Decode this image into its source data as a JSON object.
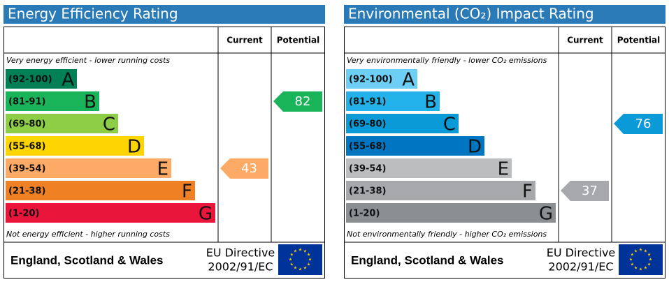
{
  "panels": [
    {
      "title": "Energy Efficiency Rating",
      "headers": [
        "Current",
        "Potential"
      ],
      "top_note": "Very energy efficient - lower running costs",
      "bottom_note": "Not energy efficient - higher running costs",
      "bands": [
        {
          "range": "(92-100)",
          "letter": "A",
          "color": "#008054"
        },
        {
          "range": "(81-91)",
          "letter": "B",
          "color": "#19b459"
        },
        {
          "range": "(69-80)",
          "letter": "C",
          "color": "#8dce46"
        },
        {
          "range": "(55-68)",
          "letter": "D",
          "color": "#ffd500"
        },
        {
          "range": "(39-54)",
          "letter": "E",
          "color": "#fcaa65"
        },
        {
          "range": "(21-38)",
          "letter": "F",
          "color": "#ef8023"
        },
        {
          "range": "(1-20)",
          "letter": "G",
          "color": "#e9153b"
        }
      ],
      "current": 43,
      "potential": 82,
      "footer": {
        "region": "England, Scotland & Wales",
        "directive": [
          "EU Directive",
          "2002/91/EC"
        ]
      }
    },
    {
      "title": "Environmental (CO₂) Impact Rating",
      "headers": [
        "Current",
        "Potential"
      ],
      "top_note": "Very environmentally friendly - lower CO₂ emissions",
      "bottom_note": "Not environmentally friendly - higher CO₂ emissions",
      "bands": [
        {
          "range": "(92-100)",
          "letter": "A",
          "color": "#6dcff6"
        },
        {
          "range": "(81-91)",
          "letter": "B",
          "color": "#22b1e8"
        },
        {
          "range": "(69-80)",
          "letter": "C",
          "color": "#0a9ad8"
        },
        {
          "range": "(55-68)",
          "letter": "D",
          "color": "#0075c1"
        },
        {
          "range": "(39-54)",
          "letter": "E",
          "color": "#bbbdbf"
        },
        {
          "range": "(21-38)",
          "letter": "F",
          "color": "#a6a8ab"
        },
        {
          "range": "(1-20)",
          "letter": "G",
          "color": "#8c8f92"
        }
      ],
      "current": 37,
      "potential": 76,
      "footer": {
        "region": "England, Scotland & Wales",
        "directive": [
          "EU Directive",
          "2002/91/EC"
        ]
      }
    }
  ]
}
